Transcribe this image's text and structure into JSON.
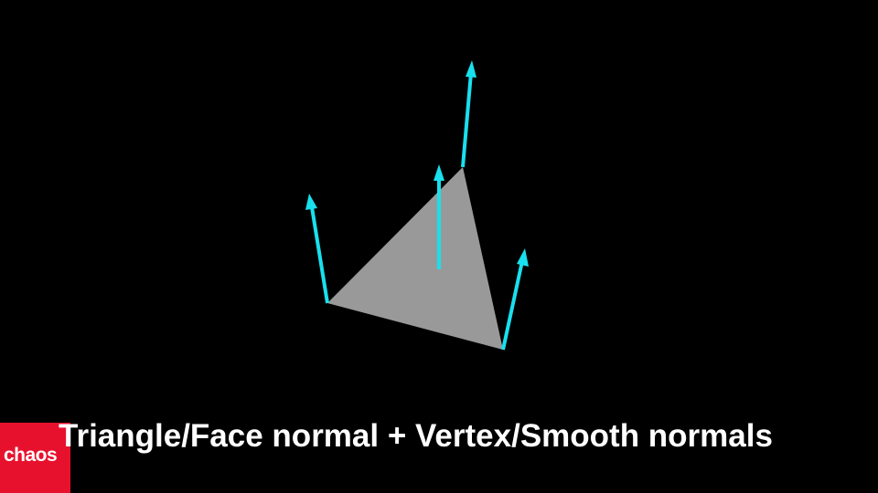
{
  "slide": {
    "caption": "Triangle/Face normal + Vertex/Smooth normals",
    "background_color": "#000000"
  },
  "logo": {
    "text": "chaos",
    "color": "#e8112d"
  },
  "diagram": {
    "triangle_color": "#999999",
    "normal_color": "#19e0ee",
    "elements": [
      "triangle-face",
      "face-normal",
      "vertex-normal-top",
      "vertex-normal-left",
      "vertex-normal-right"
    ]
  }
}
